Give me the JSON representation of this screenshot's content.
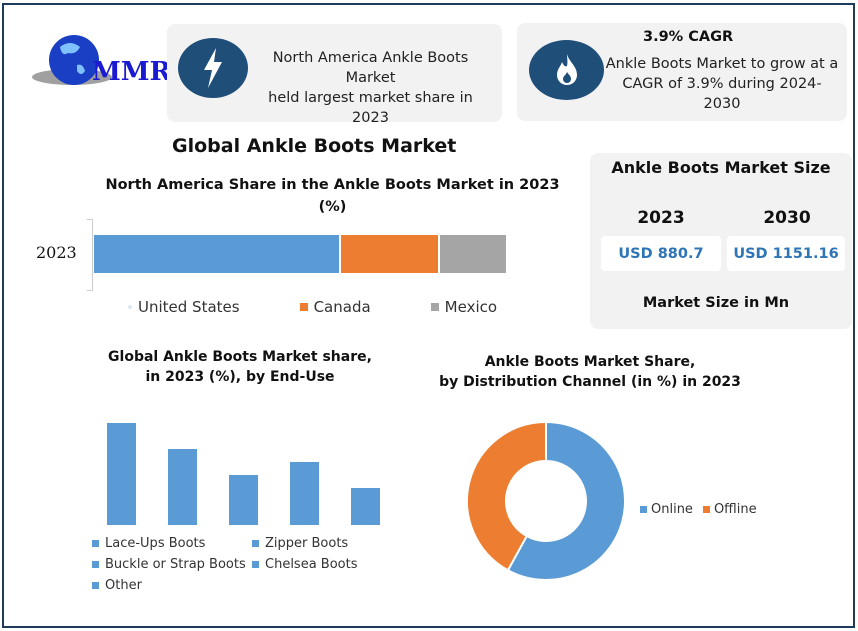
{
  "logo": {
    "text": "MMR"
  },
  "cards": [
    {
      "icon": "lightning-icon",
      "text_line1": "North America Ankle Boots Market",
      "text_line2": "held largest market share in 2023"
    },
    {
      "icon": "flame-icon",
      "title": "3.9% CAGR",
      "text_line1": "Ankle Boots Market to grow at a",
      "text_line2": "CAGR of 3.9% during 2024-2030"
    }
  ],
  "main_title": "Global Ankle Boots Market",
  "market_size": {
    "title": "Ankle Boots Market Size",
    "years": [
      "2023",
      "2030"
    ],
    "values": [
      "USD 880.7",
      "USD 1151.16"
    ],
    "footer": "Market Size in Mn"
  },
  "colors": {
    "blue": "#5b9bd5",
    "orange": "#ed7d31",
    "gray": "#a5a5a5",
    "navy": "#1f4e79"
  },
  "chart_data": [
    {
      "type": "bar",
      "orientation": "horizontal-stacked",
      "title_line1": "North America Share in the Ankle Boots Market in 2023",
      "title_line2": "(%)",
      "categories": [
        "2023"
      ],
      "series": [
        {
          "name": "United States",
          "values": [
            60
          ]
        },
        {
          "name": "Canada",
          "values": [
            24
          ]
        },
        {
          "name": "Mexico",
          "values": [
            16
          ]
        }
      ],
      "legend": "bottom"
    },
    {
      "type": "bar",
      "title_line1": "Global Ankle Boots Market share,",
      "title_line2": "in 2023 (%), by End-Use",
      "categories": [
        "Lace-Ups Boots",
        "Zipper Boots",
        "Buckle or Strap Boots",
        "Chelsea Boots",
        "Other"
      ],
      "values": [
        102,
        76,
        50,
        63,
        37
      ],
      "legend": "bottom"
    },
    {
      "type": "pie",
      "donut": true,
      "title_line1": "Ankle Boots Market Share,",
      "title_line2": "by Distribution Channel (in %) in 2023",
      "categories": [
        "Online",
        "Offline"
      ],
      "values": [
        58,
        42
      ],
      "legend": "right"
    }
  ]
}
